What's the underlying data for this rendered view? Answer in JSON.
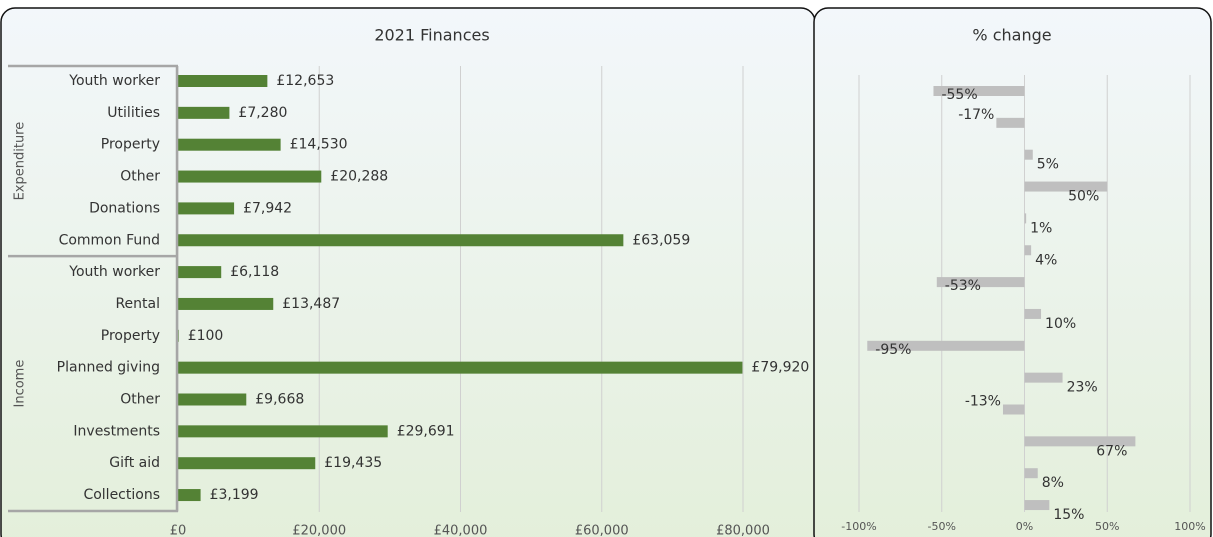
{
  "chart_data": [
    {
      "type": "bar",
      "orientation": "horizontal",
      "title": "2021 Finances",
      "color": "#548235",
      "grid": true,
      "groups": [
        {
          "name": "Expenditure",
          "categories": [
            "Youth worker",
            "Utilities",
            "Property",
            "Other",
            "Donations",
            "Common Fund"
          ],
          "values": [
            12653,
            7280,
            14530,
            20288,
            7942,
            63059
          ],
          "value_labels": [
            "£12,653",
            "£7,280",
            "£14,530",
            "£20,288",
            "£7,942",
            "£63,059"
          ]
        },
        {
          "name": "Income",
          "categories": [
            "Youth worker",
            "Rental",
            "Property",
            "Planned giving",
            "Other",
            "Investments",
            "Gift aid",
            "Collections"
          ],
          "values": [
            6118,
            13487,
            100,
            79920,
            9668,
            29691,
            19435,
            3199
          ],
          "value_labels": [
            "£6,118",
            "£13,487",
            "£100",
            "£79,920",
            "£9,668",
            "£29,691",
            "£19,435",
            "£3,199"
          ]
        }
      ],
      "xlim": [
        0,
        80000
      ],
      "xticks": [
        {
          "value": 0,
          "label": "£0"
        },
        {
          "value": 20000,
          "label": "£20,000"
        },
        {
          "value": 40000,
          "label": "£40,000"
        },
        {
          "value": 60000,
          "label": "£60,000"
        },
        {
          "value": 80000,
          "label": "£80,000"
        }
      ]
    },
    {
      "type": "bar",
      "orientation": "horizontal",
      "title": "% change",
      "color": "#bfbfbf",
      "grid": true,
      "values": [
        -55,
        -17,
        5,
        50,
        1,
        4,
        -53,
        10,
        -95,
        23,
        -13,
        67,
        8,
        15
      ],
      "value_labels": [
        "-55%",
        "-17%",
        "5%",
        "50%",
        "1%",
        "4%",
        "-53%",
        "10%",
        "-95%",
        "23%",
        "-13%",
        "67%",
        "8%",
        "15%"
      ],
      "xlim": [
        -100,
        100
      ],
      "xticks": [
        {
          "value": -100,
          "label": "-100%"
        },
        {
          "value": -50,
          "label": "-50%"
        },
        {
          "value": 0,
          "label": "0%"
        },
        {
          "value": 50,
          "label": "50%"
        },
        {
          "value": 100,
          "label": "100%"
        }
      ]
    }
  ]
}
